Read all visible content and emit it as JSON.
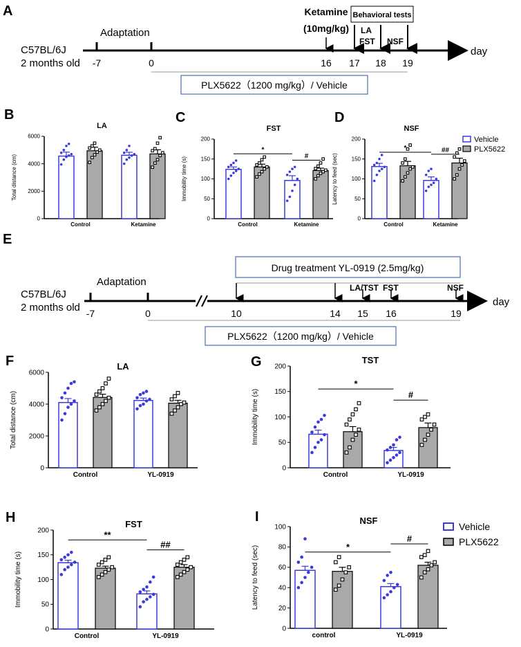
{
  "colors": {
    "vehicle": "#3b3bdc",
    "plx": "#a9a9a9",
    "axis": "#000000",
    "box_border": "#4a6fb0"
  },
  "timeline_a": {
    "panel_label": "A",
    "strain": "C57BL/6J",
    "age": "2 months old",
    "adaptation": "Adaptation",
    "ticks": [
      "-7",
      "0",
      "16",
      "17",
      "18",
      "19"
    ],
    "day_label": "day",
    "ketamine_label": "Ketamine",
    "ketamine_dose": "(10mg/kg)",
    "behavioral_tests": "Behavioral tests",
    "la": "LA",
    "fst": "FST",
    "nsf": "NSF",
    "treatment_box": "PLX5622（1200 mg/kg）/ Vehicle"
  },
  "timeline_e": {
    "panel_label": "E",
    "strain": "C57BL/6J",
    "age": "2 months old",
    "adaptation": "Adaptation",
    "ticks": [
      "-7",
      "0",
      "10",
      "14",
      "15",
      "16",
      "19"
    ],
    "day_label": "day",
    "drug_box": "Drug treatment   YL-0919 (2.5mg/kg)",
    "la_tst": "LA/TST",
    "fst": "FST",
    "nsf": "NSF",
    "treatment_box": "PLX5622（1200 mg/kg）/ Vehicle"
  },
  "legend_top": {
    "vehicle": "Vehicle",
    "plx": "PLX5622"
  },
  "legend_bottom": {
    "vehicle": "Vehicle",
    "plx": "PLX5622"
  },
  "chart_data": [
    {
      "id": "B",
      "type": "bar",
      "title": "LA",
      "ylabel": "Total  distance (cm)",
      "categories": [
        "Control",
        "Ketamine"
      ],
      "ylim": [
        0,
        6000
      ],
      "yticks": [
        0,
        2000,
        4000,
        6000
      ],
      "series": [
        {
          "name": "Vehicle",
          "values": [
            4560,
            4620
          ],
          "sem": [
            290,
            220
          ],
          "points": [
            [
              3950,
              4300,
              4500,
              4600,
              4700,
              4800,
              5000,
              5300,
              5450
            ],
            [
              4000,
              4300,
              4450,
              4600,
              4700,
              4800,
              5000,
              5300
            ]
          ]
        },
        {
          "name": "PLX5622",
          "values": [
            4950,
            4720
          ],
          "sem": [
            260,
            300
          ],
          "points": [
            [
              4100,
              4450,
              4650,
              4850,
              5000,
              5150,
              5300,
              5500
            ],
            [
              3750,
              4050,
              4300,
              4600,
              4800,
              4950,
              5100,
              5500,
              5900
            ]
          ]
        }
      ],
      "annotations": []
    },
    {
      "id": "C",
      "type": "bar",
      "title": "FST",
      "ylabel": "Immobility time (s)",
      "categories": [
        "Control",
        "Ketamine"
      ],
      "ylim": [
        0,
        200
      ],
      "yticks": [
        0,
        50,
        100,
        150,
        200
      ],
      "series": [
        {
          "name": "Vehicle",
          "values": [
            124,
            96
          ],
          "sem": [
            6,
            12
          ],
          "points": [
            [
              100,
              108,
              115,
              120,
              125,
              130,
              135,
              140,
              146
            ],
            [
              45,
              55,
              70,
              85,
              100,
              110,
              118,
              125,
              130
            ]
          ]
        },
        {
          "name": "PLX5622",
          "values": [
            130,
            121
          ],
          "sem": [
            7,
            6
          ],
          "points": [
            [
              105,
              112,
              118,
              125,
              130,
              135,
              140,
              148,
              155
            ],
            [
              100,
              108,
              114,
              118,
              122,
              126,
              132,
              140,
              150
            ]
          ]
        }
      ],
      "annotations": [
        {
          "from": [
            0,
            0
          ],
          "to": [
            1,
            0
          ],
          "y": 163,
          "label": "*"
        },
        {
          "from": [
            1,
            0
          ],
          "to": [
            1,
            1
          ],
          "y": 147,
          "label": "#"
        }
      ]
    },
    {
      "id": "D",
      "type": "bar",
      "title": "NSF",
      "ylabel": "Latency to feed (sec)",
      "categories": [
        "Control",
        "Ketamine"
      ],
      "ylim": [
        0,
        200
      ],
      "yticks": [
        0,
        50,
        100,
        150,
        200
      ],
      "series": [
        {
          "name": "Vehicle",
          "values": [
            131,
            96
          ],
          "sem": [
            8,
            9
          ],
          "points": [
            [
              95,
              110,
              120,
              125,
              130,
              135,
              140,
              150,
              160
            ],
            [
              70,
              80,
              85,
              90,
              100,
              110,
              120,
              125
            ]
          ]
        },
        {
          "name": "PLX5622",
          "values": [
            133,
            140
          ],
          "sem": [
            11,
            12
          ],
          "points": [
            [
              95,
              105,
              115,
              125,
              130,
              140,
              150,
              175,
              185
            ],
            [
              100,
              110,
              125,
              135,
              145,
              155,
              165,
              175
            ]
          ]
        }
      ],
      "annotations": [
        {
          "from": [
            0,
            0
          ],
          "to": [
            1,
            0
          ],
          "y": 167,
          "label": "*"
        },
        {
          "from": [
            1,
            0
          ],
          "to": [
            1,
            1
          ],
          "y": 162,
          "label": "##"
        }
      ]
    },
    {
      "id": "F",
      "type": "bar",
      "title": "LA",
      "ylabel": "Total  distance (cm)",
      "categories": [
        "Control",
        "YL-0919"
      ],
      "ylim": [
        0,
        6000
      ],
      "yticks": [
        0,
        2000,
        4000,
        6000
      ],
      "series": [
        {
          "name": "Vehicle",
          "values": [
            4100,
            4230
          ],
          "sem": [
            250,
            150
          ],
          "points": [
            [
              3000,
              3400,
              3800,
              4000,
              4200,
              4400,
              4700,
              5000,
              5300,
              5400
            ],
            [
              3700,
              3900,
              4000,
              4200,
              4300,
              4400,
              4600,
              4700,
              4800
            ]
          ]
        },
        {
          "name": "PLX5622",
          "values": [
            4420,
            4060
          ],
          "sem": [
            200,
            180
          ],
          "points": [
            [
              3600,
              3800,
              4000,
              4200,
              4400,
              4600,
              4800,
              5000,
              5300,
              5600
            ],
            [
              3400,
              3600,
              3800,
              4000,
              4100,
              4300,
              4500,
              4700
            ]
          ]
        }
      ],
      "annotations": []
    },
    {
      "id": "G",
      "type": "bar",
      "title": "TST",
      "ylabel": "Immobility time (s)",
      "categories": [
        "Control",
        "YL-0919"
      ],
      "ylim": [
        0,
        200
      ],
      "yticks": [
        0,
        50,
        100,
        150,
        200
      ],
      "series": [
        {
          "name": "Vehicle",
          "values": [
            66,
            34
          ],
          "sem": [
            8,
            6
          ],
          "points": [
            [
              30,
              40,
              50,
              55,
              65,
              70,
              80,
              90,
              95,
              103
            ],
            [
              10,
              15,
              20,
              25,
              30,
              35,
              40,
              45,
              55,
              60
            ]
          ]
        },
        {
          "name": "PLX5622",
          "values": [
            71,
            79
          ],
          "sem": [
            10,
            9
          ],
          "points": [
            [
              30,
              40,
              55,
              65,
              75,
              85,
              95,
              105,
              115,
              127
            ],
            [
              45,
              55,
              65,
              75,
              85,
              95,
              100,
              105
            ]
          ]
        }
      ],
      "annotations": [
        {
          "from": [
            0,
            0
          ],
          "to": [
            1,
            0
          ],
          "y": 155,
          "label": "*"
        },
        {
          "from": [
            1,
            0
          ],
          "to": [
            1,
            1
          ],
          "y": 133,
          "label": "#"
        }
      ]
    },
    {
      "id": "H",
      "type": "bar",
      "title": "FST",
      "ylabel": "Immobility time (s)",
      "categories": [
        "Control",
        "YL-0919"
      ],
      "ylim": [
        0,
        200
      ],
      "yticks": [
        0,
        50,
        100,
        150,
        200
      ],
      "series": [
        {
          "name": "Vehicle",
          "values": [
            134,
            71
          ],
          "sem": [
            5,
            6
          ],
          "points": [
            [
              110,
              120,
              125,
              130,
              135,
              140,
              145,
              150,
              155
            ],
            [
              45,
              55,
              60,
              65,
              70,
              75,
              80,
              85,
              95,
              105
            ]
          ]
        },
        {
          "name": "PLX5622",
          "values": [
            123,
            125
          ],
          "sem": [
            4,
            5
          ],
          "points": [
            [
              105,
              110,
              115,
              120,
              125,
              130,
              135,
              140,
              145
            ],
            [
              105,
              110,
              115,
              120,
              125,
              130,
              135,
              140,
              145
            ]
          ]
        }
      ],
      "annotations": [
        {
          "from": [
            0,
            0
          ],
          "to": [
            1,
            0
          ],
          "y": 180,
          "label": "**"
        },
        {
          "from": [
            1,
            0
          ],
          "to": [
            1,
            1
          ],
          "y": 160,
          "label": "##"
        }
      ]
    },
    {
      "id": "I",
      "type": "bar",
      "title": "NSF",
      "ylabel": "Latency to feed (sec)",
      "categories": [
        "control",
        "YL-0919"
      ],
      "ylim": [
        0,
        100
      ],
      "yticks": [
        0,
        20,
        40,
        60,
        80,
        100
      ],
      "series": [
        {
          "name": "Vehicle",
          "values": [
            57,
            41
          ],
          "sem": [
            4,
            3
          ],
          "points": [
            [
              40,
              45,
              50,
              55,
              60,
              65,
              70,
              88
            ],
            [
              30,
              33,
              36,
              40,
              43,
              47,
              52,
              55
            ]
          ]
        },
        {
          "name": "PLX5622",
          "values": [
            56,
            62
          ],
          "sem": [
            4,
            3
          ],
          "points": [
            [
              38,
              42,
              48,
              55,
              60,
              65,
              70
            ],
            [
              50,
              55,
              58,
              62,
              65,
              70,
              72,
              76
            ]
          ]
        }
      ],
      "annotations": [
        {
          "from": [
            0,
            0
          ],
          "to": [
            1,
            0
          ],
          "y": 75,
          "label": "*"
        },
        {
          "from": [
            1,
            0
          ],
          "to": [
            1,
            1
          ],
          "y": 83,
          "label": "#"
        }
      ]
    }
  ]
}
